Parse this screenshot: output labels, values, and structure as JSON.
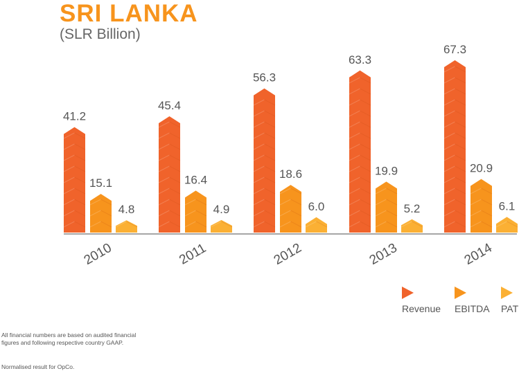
{
  "header": {
    "title": "SRI LANKA",
    "subtitle": "(SLR Billion)"
  },
  "legend": {
    "items": [
      {
        "label": "Revenue",
        "color": "#f0632b"
      },
      {
        "label": "EBITDA",
        "color": "#f7941d"
      },
      {
        "label": "PAT",
        "color": "#fbb034"
      }
    ]
  },
  "notes": {
    "line1": "All financial numbers are based on audited financial figures and following respective country GAAP.",
    "line2": "Normalised result for OpCo."
  },
  "chart_data": {
    "type": "bar",
    "categories": [
      "2010",
      "2011",
      "2012",
      "2013",
      "2014"
    ],
    "series": [
      {
        "name": "Revenue",
        "values": [
          41.2,
          45.4,
          56.3,
          63.3,
          67.3
        ],
        "color": "#f0632b"
      },
      {
        "name": "EBITDA",
        "values": [
          15.1,
          16.4,
          18.6,
          19.9,
          20.9
        ],
        "color": "#f7941d"
      },
      {
        "name": "PAT",
        "values": [
          4.8,
          4.9,
          6.0,
          5.2,
          6.1
        ],
        "color": "#fbb034"
      }
    ],
    "title": "SRI LANKA",
    "subtitle": "(SLR Billion)",
    "ylim": [
      0,
      67.3
    ],
    "grid": false,
    "legend_position": "bottom-right",
    "data_labels": true
  }
}
